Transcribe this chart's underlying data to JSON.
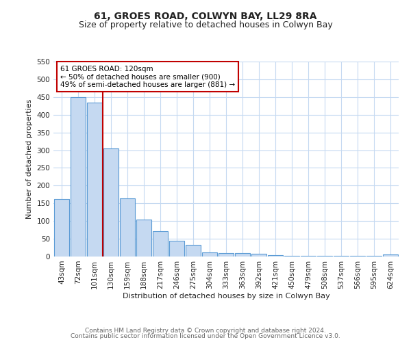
{
  "title": "61, GROES ROAD, COLWYN BAY, LL29 8RA",
  "subtitle": "Size of property relative to detached houses in Colwyn Bay",
  "xlabel": "Distribution of detached houses by size in Colwyn Bay",
  "ylabel": "Number of detached properties",
  "categories": [
    "43sqm",
    "72sqm",
    "101sqm",
    "130sqm",
    "159sqm",
    "188sqm",
    "217sqm",
    "246sqm",
    "275sqm",
    "304sqm",
    "333sqm",
    "363sqm",
    "392sqm",
    "421sqm",
    "450sqm",
    "479sqm",
    "508sqm",
    "537sqm",
    "566sqm",
    "595sqm",
    "624sqm"
  ],
  "values": [
    163,
    450,
    435,
    305,
    165,
    105,
    72,
    44,
    33,
    12,
    10,
    9,
    7,
    3,
    2,
    2,
    2,
    1,
    1,
    1,
    5
  ],
  "bar_color": "#c5d9f1",
  "bar_edge_color": "#5b9bd5",
  "vline_x": 2.5,
  "vline_color": "#c00000",
  "annotation_text": "61 GROES ROAD: 120sqm\n← 50% of detached houses are smaller (900)\n49% of semi-detached houses are larger (881) →",
  "annotation_box_color": "#ffffff",
  "annotation_box_edge": "#c00000",
  "ylim": [
    0,
    550
  ],
  "yticks": [
    0,
    50,
    100,
    150,
    200,
    250,
    300,
    350,
    400,
    450,
    500,
    550
  ],
  "footer_line1": "Contains HM Land Registry data © Crown copyright and database right 2024.",
  "footer_line2": "Contains public sector information licensed under the Open Government Licence v3.0.",
  "bg_color": "#ffffff",
  "grid_color": "#c5d9f1",
  "title_fontsize": 10,
  "subtitle_fontsize": 9,
  "axis_label_fontsize": 8,
  "tick_fontsize": 7.5,
  "annotation_fontsize": 7.5,
  "footer_fontsize": 6.5
}
